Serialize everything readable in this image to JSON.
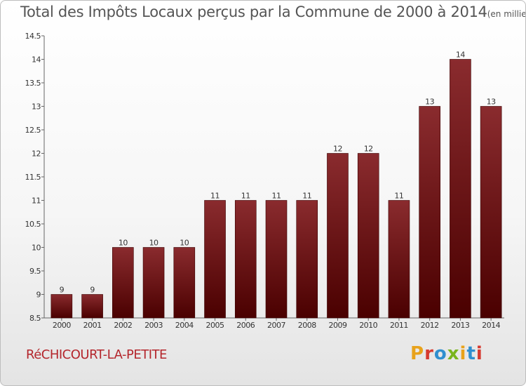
{
  "header": {
    "title": "Total des Impôts Locaux perçus par la Commune de 2000 à 2014",
    "subtitle": "(en milliers d'€)"
  },
  "footer": {
    "commune": "RéCHICOURT-LA-PETITE",
    "brand": "Proxiti",
    "brand_colors": [
      "#e8a21b",
      "#d63a2f",
      "#2f8fcf",
      "#7ab51d",
      "#e8a21b",
      "#2f8fcf",
      "#d63a2f"
    ]
  },
  "chart_data": {
    "type": "bar",
    "title": "Total des Impôts Locaux perçus par la Commune de 2000 à 2014",
    "subtitle": "(en milliers d'€)",
    "xlabel": "",
    "ylabel": "",
    "categories": [
      "2000",
      "2001",
      "2002",
      "2003",
      "2004",
      "2005",
      "2006",
      "2007",
      "2008",
      "2009",
      "2010",
      "2011",
      "2012",
      "2013",
      "2014"
    ],
    "values": [
      9,
      9,
      10,
      10,
      10,
      11,
      11,
      11,
      11,
      12,
      12,
      11,
      13,
      14,
      13
    ],
    "value_labels": [
      "9",
      "9",
      "10",
      "10",
      "10",
      "11",
      "11",
      "11",
      "11",
      "12",
      "12",
      "11",
      "13",
      "14",
      "13"
    ],
    "ylim": [
      8.5,
      14.5
    ],
    "yticks": [
      8.5,
      9,
      9.5,
      10,
      10.5,
      11,
      11.5,
      12,
      12.5,
      13,
      13.5,
      14,
      14.5
    ],
    "ytick_labels": [
      "8.5",
      "9",
      "9.5",
      "10",
      "10.5",
      "11",
      "11.5",
      "12",
      "12.5",
      "13",
      "13.5",
      "14",
      "14.5"
    ],
    "bar_color": "#8a2b2e",
    "bar_color_dark": "#4a0000",
    "grid": false,
    "legend": "none"
  }
}
